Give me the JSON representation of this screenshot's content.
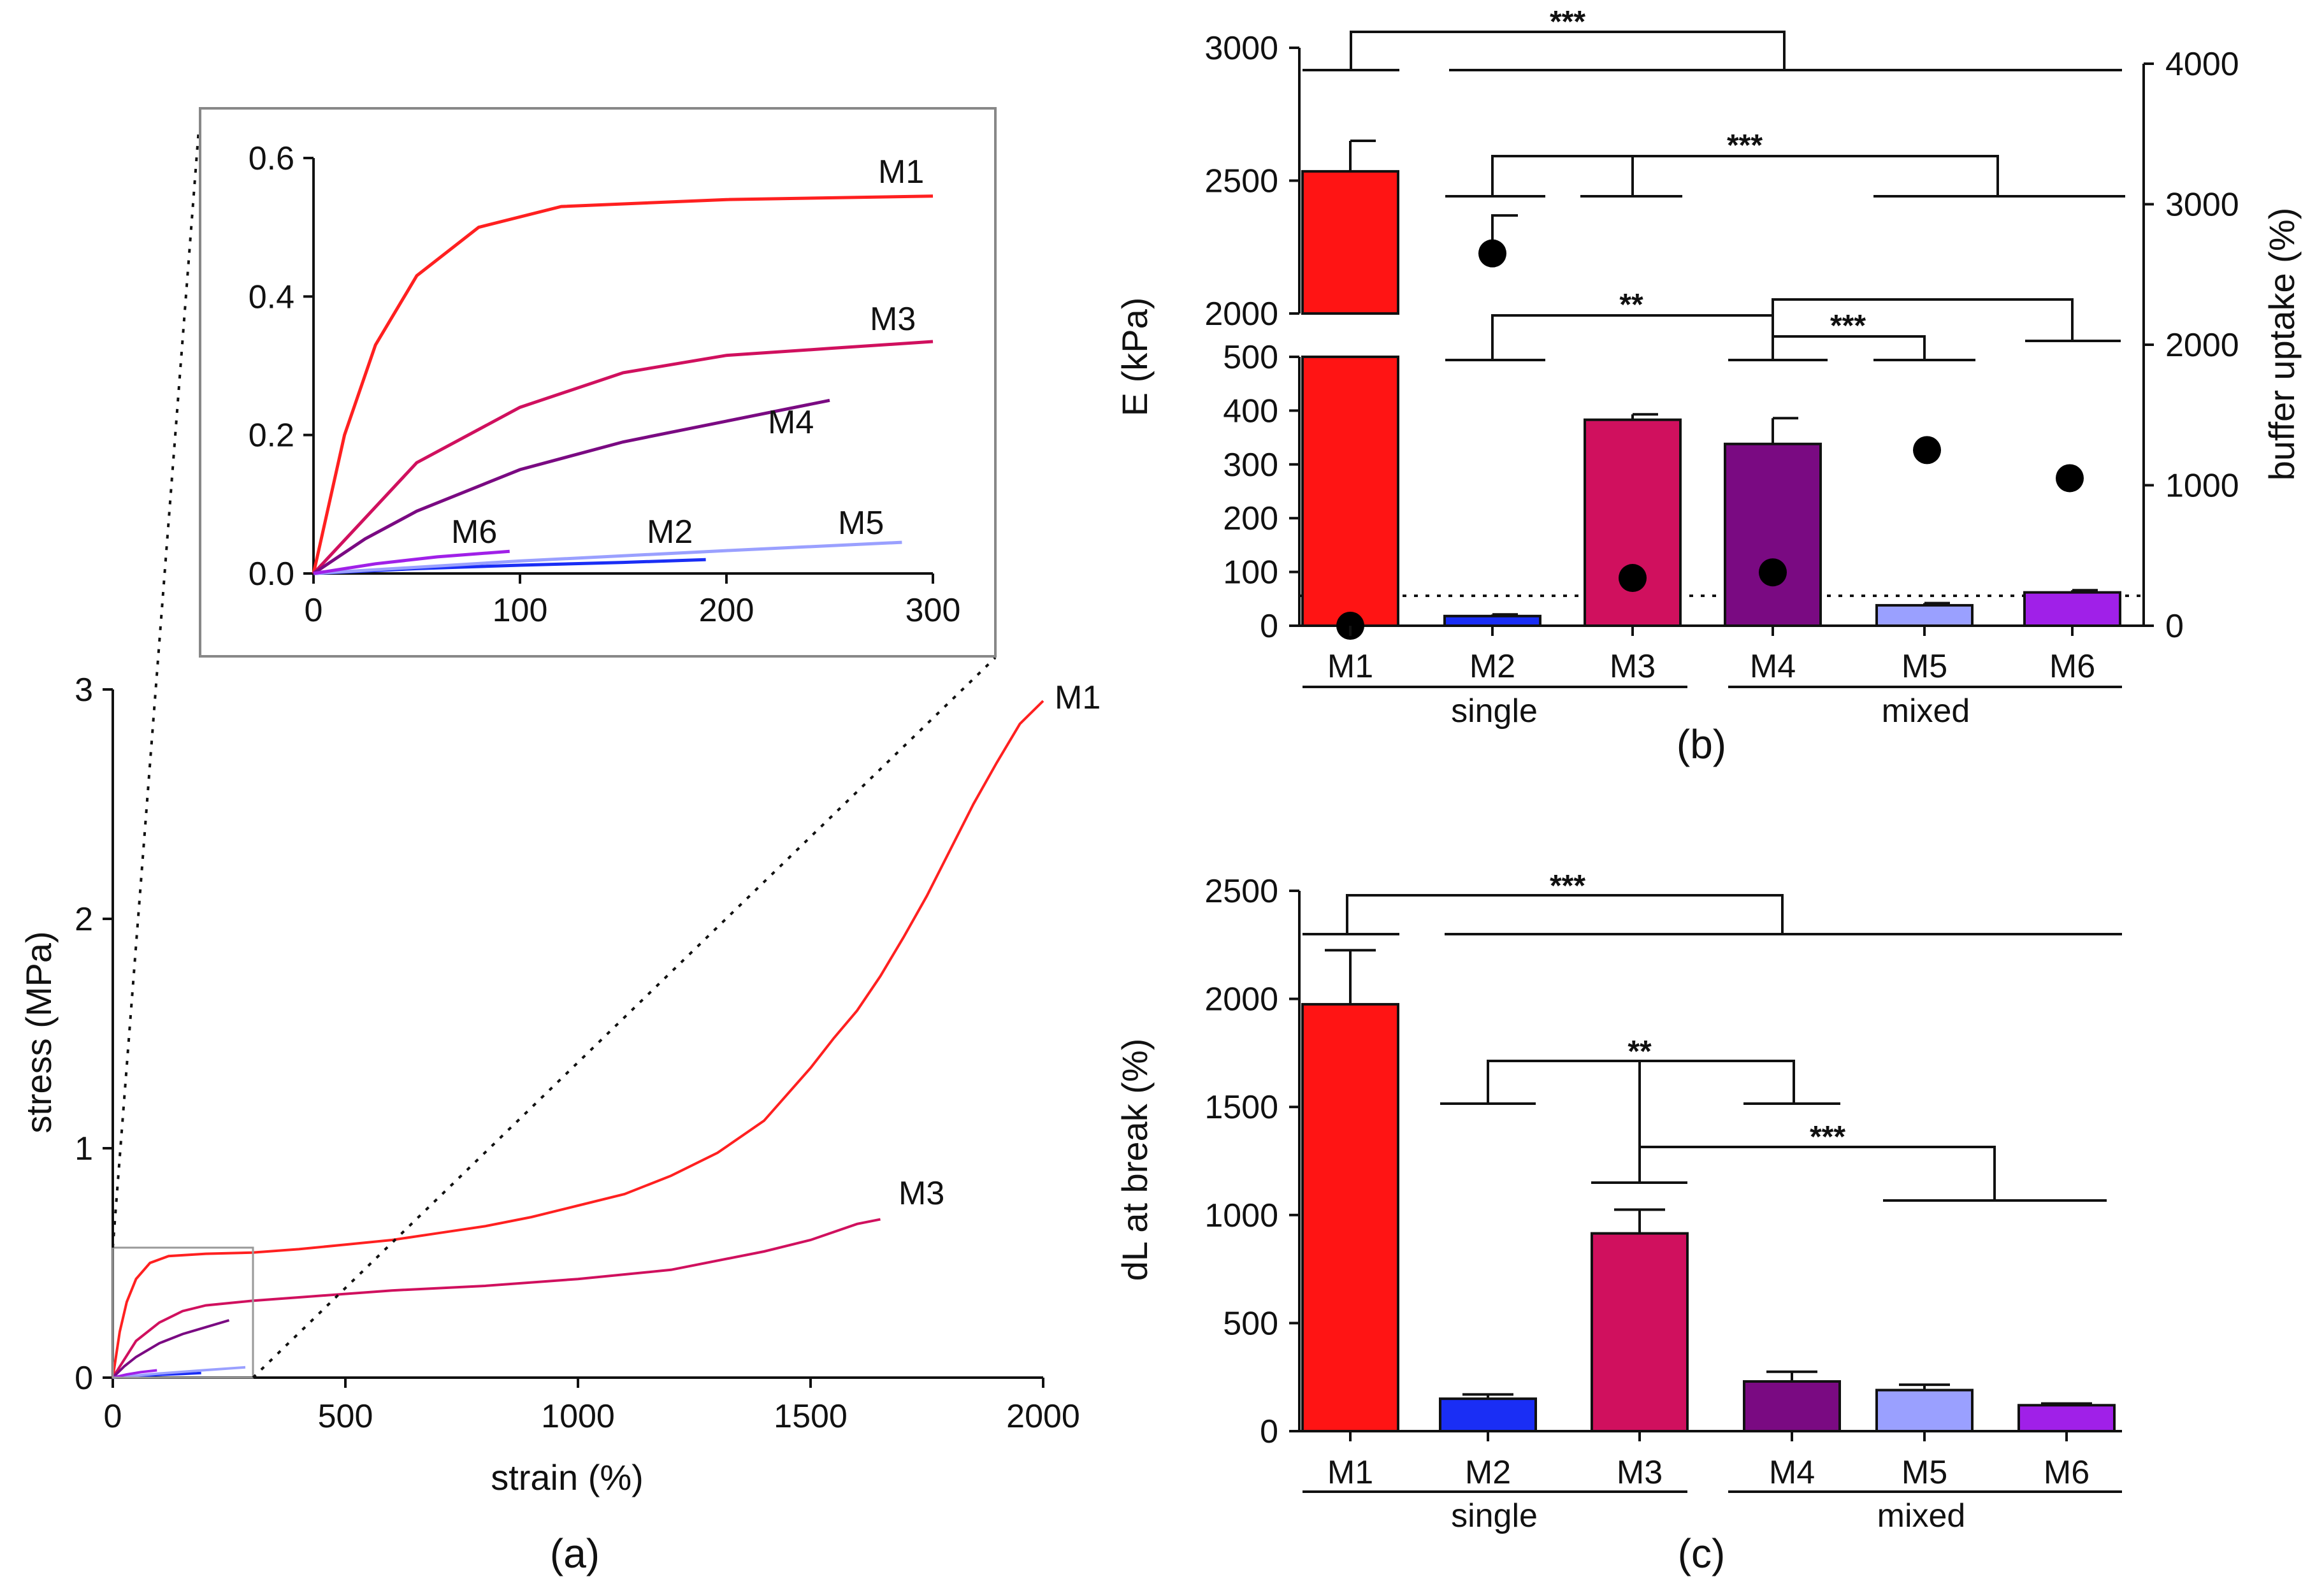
{
  "chart_data": [
    {
      "id": "a",
      "type": "line",
      "panel_label": "(a)",
      "xlabel": "strain (%)",
      "ylabel": "stress (MPa)",
      "xlim": [
        0,
        2000
      ],
      "ylim": [
        0,
        3
      ],
      "xticks": [
        "0",
        "500",
        "1000",
        "1500",
        "2000"
      ],
      "yticks": [
        "0",
        "1",
        "2",
        "3"
      ],
      "series": [
        {
          "name": "M1",
          "color": "#ff2020",
          "x": [
            0,
            15,
            30,
            50,
            80,
            120,
            200,
            300,
            400,
            500,
            600,
            700,
            800,
            900,
            1000,
            1100,
            1200,
            1300,
            1400,
            1500,
            1550,
            1600,
            1650,
            1700,
            1750,
            1800,
            1850,
            1900,
            1950,
            2000
          ],
          "y": [
            0,
            0.2,
            0.33,
            0.43,
            0.5,
            0.53,
            0.54,
            0.545,
            0.56,
            0.58,
            0.6,
            0.63,
            0.66,
            0.7,
            0.75,
            0.8,
            0.88,
            0.98,
            1.12,
            1.35,
            1.48,
            1.6,
            1.75,
            1.92,
            2.1,
            2.3,
            2.5,
            2.68,
            2.85,
            2.95
          ]
        },
        {
          "name": "M2",
          "color": "#1a2ef5",
          "x": [
            0,
            50,
            100,
            150,
            190
          ],
          "y": [
            0,
            0.007,
            0.012,
            0.016,
            0.02
          ]
        },
        {
          "name": "M3",
          "color": "#d0105e",
          "x": [
            0,
            50,
            100,
            150,
            200,
            250,
            300,
            400,
            600,
            800,
            1000,
            1200,
            1400,
            1500,
            1600,
            1650
          ],
          "y": [
            0,
            0.16,
            0.24,
            0.29,
            0.315,
            0.325,
            0.335,
            0.35,
            0.38,
            0.4,
            0.43,
            0.47,
            0.55,
            0.6,
            0.67,
            0.69
          ]
        },
        {
          "name": "M4",
          "color": "#7a0a82",
          "x": [
            0,
            25,
            50,
            100,
            150,
            200,
            250
          ],
          "y": [
            0,
            0.05,
            0.09,
            0.15,
            0.19,
            0.22,
            0.25
          ]
        },
        {
          "name": "M5",
          "color": "#9aa0ff",
          "x": [
            0,
            100,
            200,
            285
          ],
          "y": [
            0,
            0.018,
            0.033,
            0.045
          ]
        },
        {
          "name": "M6",
          "color": "#a020e8",
          "x": [
            0,
            30,
            60,
            95
          ],
          "y": [
            0,
            0.014,
            0.024,
            0.032
          ]
        }
      ],
      "labels": [
        {
          "text": "M1",
          "series": "M1"
        },
        {
          "text": "M3",
          "series": "M3"
        }
      ]
    },
    {
      "id": "a-inset",
      "type": "line",
      "xlim": [
        0,
        300
      ],
      "ylim": [
        0,
        0.6
      ],
      "xticks": [
        "0",
        "100",
        "200",
        "300"
      ],
      "yticks": [
        "0.0",
        "0.2",
        "0.4",
        "0.6"
      ],
      "series_from": "a",
      "labels": [
        {
          "text": "M1",
          "series": "M1"
        },
        {
          "text": "M3",
          "series": "M3"
        },
        {
          "text": "M4",
          "series": "M4"
        },
        {
          "text": "M6",
          "series": "M6"
        },
        {
          "text": "M2",
          "series": "M2"
        },
        {
          "text": "M5",
          "series": "M5"
        }
      ]
    },
    {
      "id": "b",
      "type": "bar",
      "panel_label": "(b)",
      "ylabel": "E (kPa)",
      "y2label": "buffer uptake (%)",
      "categories": [
        "M1",
        "M2",
        "M3",
        "M4",
        "M5",
        "M6"
      ],
      "colors": [
        "#ff1414",
        "#1a2ef5",
        "#d0105e",
        "#7a0a82",
        "#9aa0ff",
        "#a020e8"
      ],
      "values": [
        2535,
        18,
        383,
        338,
        38,
        62
      ],
      "errors": [
        115,
        3,
        10,
        48,
        4,
        4
      ],
      "y_axis_break": {
        "lower_range": [
          0,
          500
        ],
        "upper_range": [
          2000,
          3000
        ]
      },
      "yticks_lower": [
        "0",
        "100",
        "200",
        "300",
        "400",
        "500"
      ],
      "yticks_upper": [
        "2000",
        "2500",
        "3000"
      ],
      "y2lim": [
        0,
        4000
      ],
      "y2ticks": [
        "0",
        "1000",
        "2000",
        "3000",
        "4000"
      ],
      "secondary_series": {
        "name": "buffer uptake (%)",
        "values": [
          0,
          2650,
          340,
          380,
          1250,
          1050
        ],
        "errors": [
          0,
          270,
          0,
          0,
          0,
          0
        ]
      },
      "reference_line_kpa": 55,
      "groups": [
        {
          "label": "single",
          "members": [
            "M1",
            "M2",
            "M3"
          ]
        },
        {
          "label": "mixed",
          "members": [
            "M4",
            "M5",
            "M6"
          ]
        }
      ],
      "significance": [
        "***",
        "***",
        "**",
        "***"
      ]
    },
    {
      "id": "c",
      "type": "bar",
      "panel_label": "(c)",
      "ylabel": "dL at break (%)",
      "ylim": [
        0,
        2500
      ],
      "yticks": [
        "0",
        "500",
        "1000",
        "1500",
        "2000",
        "2500"
      ],
      "categories": [
        "M1",
        "M2",
        "M3",
        "M4",
        "M5",
        "M6"
      ],
      "colors": [
        "#ff1414",
        "#1a2ef5",
        "#d0105e",
        "#7a0a82",
        "#9aa0ff",
        "#a020e8"
      ],
      "values": [
        1975,
        150,
        915,
        230,
        190,
        120
      ],
      "errors": [
        250,
        20,
        110,
        45,
        25,
        8
      ],
      "groups": [
        {
          "label": "single",
          "members": [
            "M1",
            "M2",
            "M3"
          ]
        },
        {
          "label": "mixed",
          "members": [
            "M4",
            "M5",
            "M6"
          ]
        }
      ],
      "significance": [
        "***",
        "**",
        "***"
      ]
    }
  ]
}
